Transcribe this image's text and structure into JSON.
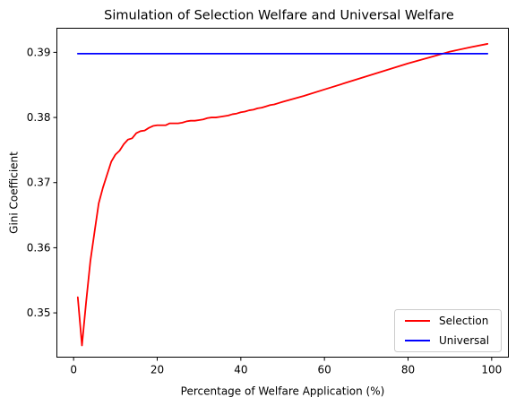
{
  "chart_data": {
    "type": "line",
    "title": "Simulation of Selection Welfare and Universal Welfare",
    "xlabel": "Percentage of Welfare Application (%)",
    "ylabel": "Gini Coefficient",
    "xlim": [
      -4,
      104
    ],
    "ylim": [
      0.3432,
      0.3937
    ],
    "xticks": [
      0,
      20,
      40,
      60,
      80,
      100
    ],
    "yticks": [
      0.35,
      0.36,
      0.37,
      0.38,
      0.39
    ],
    "xtick_labels": [
      "0",
      "20",
      "40",
      "60",
      "80",
      "100"
    ],
    "ytick_labels": [
      "0.35",
      "0.36",
      "0.37",
      "0.38",
      "0.39"
    ],
    "grid": false,
    "legend_position": "bottom-right",
    "series": [
      {
        "name": "Selection",
        "color": "#ff0000",
        "x": [
          1,
          2,
          3,
          4,
          5,
          6,
          7,
          8,
          9,
          10,
          11,
          12,
          13,
          14,
          15,
          16,
          17,
          18,
          19,
          20,
          21,
          22,
          23,
          24,
          25,
          26,
          27,
          28,
          29,
          30,
          31,
          32,
          33,
          34,
          35,
          36,
          37,
          38,
          39,
          40,
          41,
          42,
          43,
          44,
          45,
          46,
          47,
          48,
          49,
          50,
          55,
          60,
          65,
          70,
          75,
          80,
          85,
          90,
          95,
          99
        ],
        "y": [
          0.3524,
          0.345,
          0.3517,
          0.3579,
          0.3624,
          0.3668,
          0.3692,
          0.3712,
          0.3732,
          0.3743,
          0.3749,
          0.3759,
          0.3766,
          0.3768,
          0.3776,
          0.3779,
          0.378,
          0.3784,
          0.3787,
          0.3788,
          0.3788,
          0.3788,
          0.3791,
          0.3791,
          0.3791,
          0.3792,
          0.3794,
          0.3795,
          0.3795,
          0.3796,
          0.3797,
          0.3799,
          0.38,
          0.38,
          0.3801,
          0.3802,
          0.3803,
          0.3805,
          0.3806,
          0.3808,
          0.3809,
          0.3811,
          0.3812,
          0.3814,
          0.3815,
          0.3817,
          0.3819,
          0.382,
          0.3822,
          0.3824,
          0.3833,
          0.3843,
          0.3853,
          0.3863,
          0.3873,
          0.3883,
          0.3892,
          0.3901,
          0.3908,
          0.3913
        ]
      },
      {
        "name": "Universal",
        "color": "#0000ff",
        "x": [
          1,
          99
        ],
        "y": [
          0.3898,
          0.3898
        ]
      }
    ]
  }
}
